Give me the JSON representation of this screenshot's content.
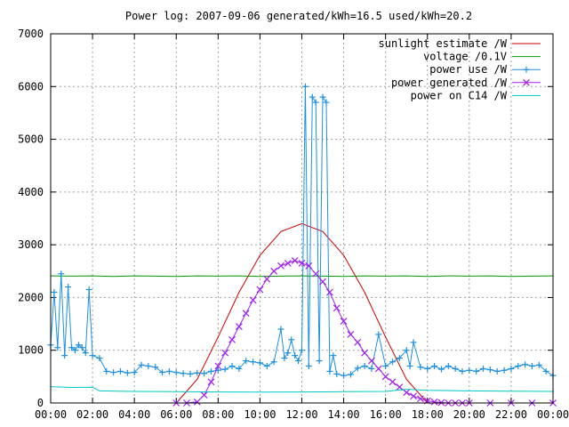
{
  "chart_data": {
    "type": "line",
    "title": "Power log: 2007-09-06 generated/kWh=16.5 used/kWh=20.2",
    "xlabel": "",
    "ylabel": "",
    "xlim": [
      "00:00",
      "24:00"
    ],
    "ylim": [
      0,
      7000
    ],
    "x_ticks": [
      "00:00",
      "02:00",
      "04:00",
      "06:00",
      "08:00",
      "10:00",
      "12:00",
      "14:00",
      "16:00",
      "18:00",
      "20:00",
      "22:00",
      "00:00"
    ],
    "y_ticks": [
      0,
      1000,
      2000,
      3000,
      4000,
      5000,
      6000,
      7000
    ],
    "grid": true,
    "legend_position": "top-right",
    "series": [
      {
        "name": "sunlight estimate /W",
        "color": "#cc0000",
        "marker": "none",
        "x": [
          "06:00",
          "07:00",
          "08:00",
          "09:00",
          "10:00",
          "11:00",
          "12:00",
          "13:00",
          "14:00",
          "15:00",
          "16:00",
          "17:00",
          "18:00"
        ],
        "values": [
          0,
          450,
          1250,
          2100,
          2800,
          3250,
          3400,
          3250,
          2800,
          2100,
          1250,
          450,
          0
        ]
      },
      {
        "name": "voltage /0.1V",
        "color": "#009900",
        "marker": "none",
        "x": [
          "00:00",
          "01:00",
          "02:00",
          "03:00",
          "04:00",
          "05:00",
          "06:00",
          "07:00",
          "08:00",
          "09:00",
          "10:00",
          "11:00",
          "12:00",
          "13:00",
          "14:00",
          "15:00",
          "16:00",
          "17:00",
          "18:00",
          "19:00",
          "20:00",
          "21:00",
          "22:00",
          "23:00",
          "24:00"
        ],
        "values": [
          2410,
          2405,
          2410,
          2400,
          2410,
          2405,
          2400,
          2410,
          2405,
          2410,
          2400,
          2405,
          2410,
          2405,
          2400,
          2410,
          2405,
          2410,
          2400,
          2410,
          2405,
          2410,
          2400,
          2405,
          2410
        ]
      },
      {
        "name": "power use /W",
        "color": "#1e90e0",
        "marker": "plus",
        "x": [
          "00:00",
          "00:10",
          "00:20",
          "00:30",
          "00:40",
          "00:50",
          "01:00",
          "01:10",
          "01:20",
          "01:30",
          "01:40",
          "01:50",
          "02:00",
          "02:20",
          "02:40",
          "03:00",
          "03:20",
          "03:40",
          "04:00",
          "04:20",
          "04:40",
          "05:00",
          "05:20",
          "05:40",
          "06:00",
          "06:20",
          "06:40",
          "07:00",
          "07:20",
          "07:40",
          "08:00",
          "08:20",
          "08:40",
          "09:00",
          "09:20",
          "09:40",
          "10:00",
          "10:20",
          "10:40",
          "11:00",
          "11:10",
          "11:20",
          "11:30",
          "11:40",
          "11:50",
          "12:00",
          "12:10",
          "12:20",
          "12:30",
          "12:40",
          "12:50",
          "13:00",
          "13:10",
          "13:20",
          "13:30",
          "13:40",
          "14:00",
          "14:20",
          "14:40",
          "15:00",
          "15:20",
          "15:40",
          "16:00",
          "16:20",
          "16:40",
          "17:00",
          "17:10",
          "17:20",
          "17:40",
          "18:00",
          "18:20",
          "18:40",
          "19:00",
          "19:20",
          "19:40",
          "20:00",
          "20:20",
          "20:40",
          "21:00",
          "21:20",
          "21:40",
          "22:00",
          "22:20",
          "22:40",
          "23:00",
          "23:20",
          "23:40",
          "24:00"
        ],
        "values": [
          1100,
          2100,
          1050,
          2450,
          900,
          2200,
          1050,
          1000,
          1100,
          1050,
          950,
          2150,
          900,
          850,
          600,
          580,
          600,
          570,
          580,
          720,
          700,
          680,
          580,
          600,
          580,
          560,
          550,
          570,
          560,
          600,
          620,
          640,
          700,
          650,
          800,
          780,
          760,
          700,
          780,
          1400,
          850,
          950,
          1200,
          900,
          800,
          1000,
          6000,
          700,
          5800,
          5700,
          800,
          5800,
          5700,
          600,
          900,
          550,
          520,
          540,
          660,
          700,
          650,
          1300,
          700,
          780,
          850,
          1000,
          700,
          1150,
          680,
          650,
          700,
          640,
          700,
          650,
          600,
          620,
          600,
          650,
          630,
          600,
          620,
          650,
          700,
          730,
          700,
          720,
          600,
          520
        ]
      },
      {
        "name": "power generated /W",
        "color": "#a020f0",
        "marker": "x",
        "x": [
          "06:00",
          "06:30",
          "07:00",
          "07:20",
          "07:40",
          "08:00",
          "08:20",
          "08:40",
          "09:00",
          "09:20",
          "09:40",
          "10:00",
          "10:20",
          "10:40",
          "11:00",
          "11:20",
          "11:40",
          "12:00",
          "12:20",
          "12:40",
          "13:00",
          "13:20",
          "13:40",
          "14:00",
          "14:20",
          "14:40",
          "15:00",
          "15:20",
          "15:40",
          "16:00",
          "16:20",
          "16:40",
          "17:00",
          "17:20",
          "17:40",
          "18:00",
          "18:20",
          "18:40",
          "19:00",
          "19:20",
          "19:40",
          "20:00",
          "21:00",
          "22:00",
          "23:00",
          "24:00"
        ],
        "values": [
          0,
          0,
          20,
          150,
          400,
          700,
          950,
          1200,
          1450,
          1700,
          1950,
          2150,
          2350,
          2500,
          2600,
          2650,
          2700,
          2650,
          2600,
          2450,
          2300,
          2100,
          1800,
          1550,
          1300,
          1150,
          950,
          800,
          650,
          500,
          400,
          300,
          200,
          130,
          80,
          40,
          20,
          8,
          0,
          0,
          0,
          0,
          0,
          0,
          0,
          0
        ]
      },
      {
        "name": "power on C14 /W",
        "color": "#00c8c8",
        "marker": "none",
        "x": [
          "00:00",
          "01:00",
          "02:00",
          "02:20",
          "04:00",
          "06:00",
          "08:00",
          "10:00",
          "12:00",
          "14:00",
          "16:00",
          "17:00",
          "18:00",
          "20:00",
          "22:00",
          "24:00"
        ],
        "values": [
          310,
          295,
          300,
          230,
          220,
          215,
          210,
          205,
          210,
          215,
          220,
          260,
          240,
          230,
          225,
          220
        ]
      }
    ]
  }
}
